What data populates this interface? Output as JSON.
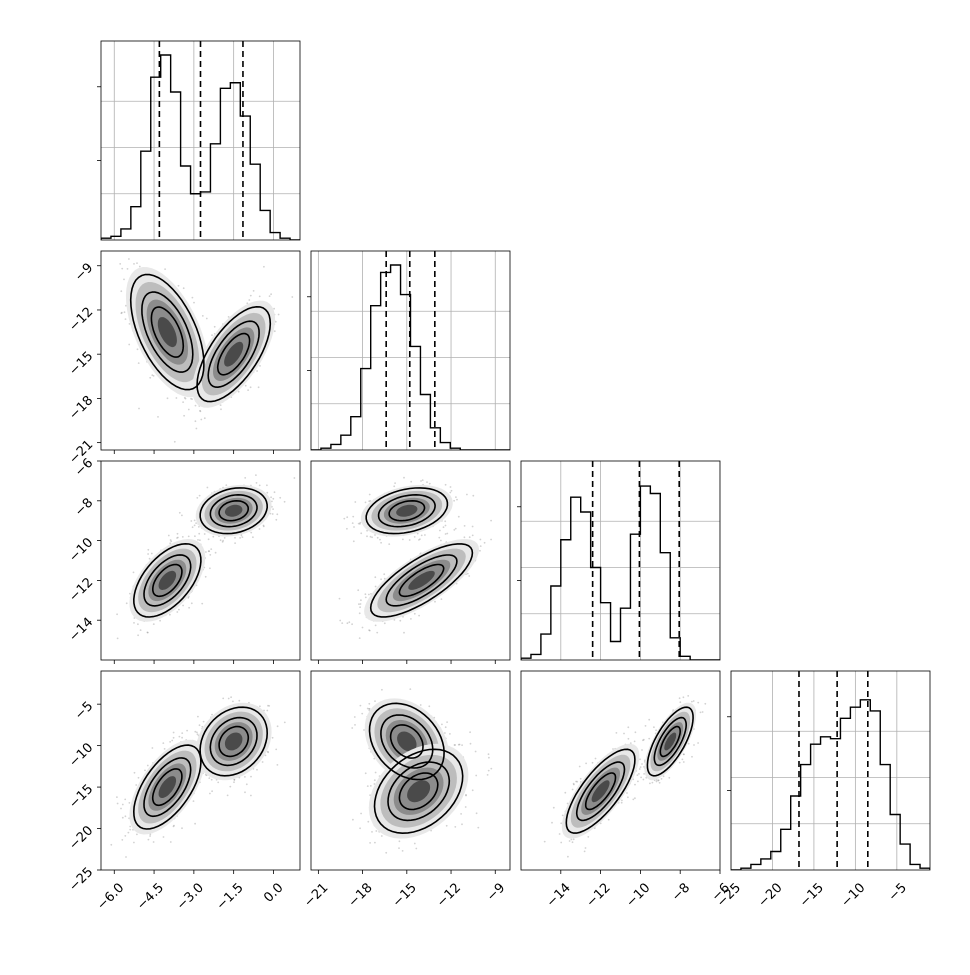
{
  "chart_data": {
    "type": "corner",
    "title": "",
    "parameters": [
      {
        "index": 0,
        "range": [
          -6.5,
          1.0
        ],
        "ticks": [
          -6.0,
          -4.5,
          -3.0,
          -1.5,
          0.0
        ],
        "tick_labels": [
          "−6.0",
          "−4.5",
          "−3.0",
          "−1.5",
          "0.0"
        ],
        "quantiles": [
          -4.3,
          -2.75,
          -1.15
        ]
      },
      {
        "index": 1,
        "range": [
          -21.5,
          -8.0
        ],
        "ticks": [
          -21,
          -18,
          -15,
          -12,
          -9
        ],
        "tick_labels": [
          "−21",
          "−18",
          "−15",
          "−12",
          "−9"
        ],
        "quantiles": [
          -16.4,
          -14.8,
          -13.1
        ]
      },
      {
        "index": 2,
        "range": [
          -16.0,
          -6.0
        ],
        "ticks": [
          -14,
          -12,
          -10,
          -8,
          -6
        ],
        "tick_labels": [
          "−14",
          "−12",
          "−10",
          "−8",
          "−6"
        ],
        "quantiles": [
          -12.4,
          -10.05,
          -8.05
        ]
      },
      {
        "index": 3,
        "range": [
          -25.0,
          -1.0
        ],
        "ticks": [
          -25,
          -20,
          -15,
          -10,
          -5
        ],
        "tick_labels": [
          "−25",
          "−20",
          "−15",
          "−10",
          "−5"
        ],
        "quantiles": [
          -16.8,
          -12.2,
          -8.5
        ]
      }
    ],
    "histograms": [
      {
        "param": 0,
        "counts": [
          1,
          2,
          6,
          18,
          48,
          88,
          100,
          80,
          40,
          25,
          26,
          52,
          82,
          85,
          67,
          41,
          16,
          4,
          1,
          0
        ]
      },
      {
        "param": 1,
        "counts": [
          0,
          1,
          3,
          8,
          18,
          44,
          78,
          96,
          100,
          84,
          56,
          30,
          12,
          4,
          1,
          0,
          0,
          0,
          0,
          0
        ]
      },
      {
        "param": 2,
        "counts": [
          1,
          3,
          14,
          40,
          65,
          88,
          80,
          50,
          31,
          10,
          28,
          68,
          94,
          90,
          58,
          12,
          2,
          0,
          0,
          0
        ]
      },
      {
        "param": 3,
        "counts": [
          0,
          1,
          3,
          6,
          10,
          22,
          40,
          57,
          68,
          72,
          71,
          82,
          88,
          92,
          86,
          57,
          30,
          14,
          3,
          1
        ]
      }
    ],
    "panels_2d": [
      {
        "x_param": 0,
        "y_param": 1,
        "modes": [
          {
            "x": -4.0,
            "y": -13.5,
            "sx": 0.6,
            "sy": 1.7,
            "corr": -0.55
          },
          {
            "x": -1.5,
            "y": -15.0,
            "sx": 0.6,
            "sy": 1.4,
            "corr": 0.65
          }
        ]
      },
      {
        "x_param": 0,
        "y_param": 2,
        "modes": [
          {
            "x": -4.0,
            "y": -12.0,
            "sx": 0.55,
            "sy": 0.8,
            "corr": 0.55
          },
          {
            "x": -1.5,
            "y": -8.5,
            "sx": 0.55,
            "sy": 0.5,
            "corr": 0.2
          }
        ]
      },
      {
        "x_param": 0,
        "y_param": 3,
        "modes": [
          {
            "x": -4.0,
            "y": -15.0,
            "sx": 0.55,
            "sy": 2.2,
            "corr": 0.6
          },
          {
            "x": -1.5,
            "y": -9.5,
            "sx": 0.55,
            "sy": 1.8,
            "corr": 0.25
          }
        ]
      },
      {
        "x_param": 1,
        "y_param": 2,
        "modes": [
          {
            "x": -15.0,
            "y": -8.5,
            "sx": 1.2,
            "sy": 0.5,
            "corr": 0.3
          },
          {
            "x": -14.0,
            "y": -12.0,
            "sx": 1.5,
            "sy": 0.8,
            "corr": 0.75
          }
        ]
      },
      {
        "x_param": 1,
        "y_param": 3,
        "modes": [
          {
            "x": -15.0,
            "y": -9.5,
            "sx": 1.1,
            "sy": 2.0,
            "corr": -0.3
          },
          {
            "x": -14.2,
            "y": -15.5,
            "sx": 1.3,
            "sy": 2.2,
            "corr": 0.35
          }
        ]
      },
      {
        "x_param": 2,
        "y_param": 3,
        "modes": [
          {
            "x": -12.0,
            "y": -15.5,
            "sx": 0.75,
            "sy": 2.2,
            "corr": 0.75
          },
          {
            "x": -8.5,
            "y": -9.5,
            "sx": 0.5,
            "sy": 1.8,
            "corr": 0.7
          }
        ]
      }
    ],
    "contour_levels": [
      1.0,
      1.6,
      2.3
    ],
    "grid": true,
    "legend": "none",
    "colors": {
      "line": "#000000",
      "quantile": "#000000",
      "grid": "#b0b0b0",
      "points": "#7f7f7f"
    }
  }
}
